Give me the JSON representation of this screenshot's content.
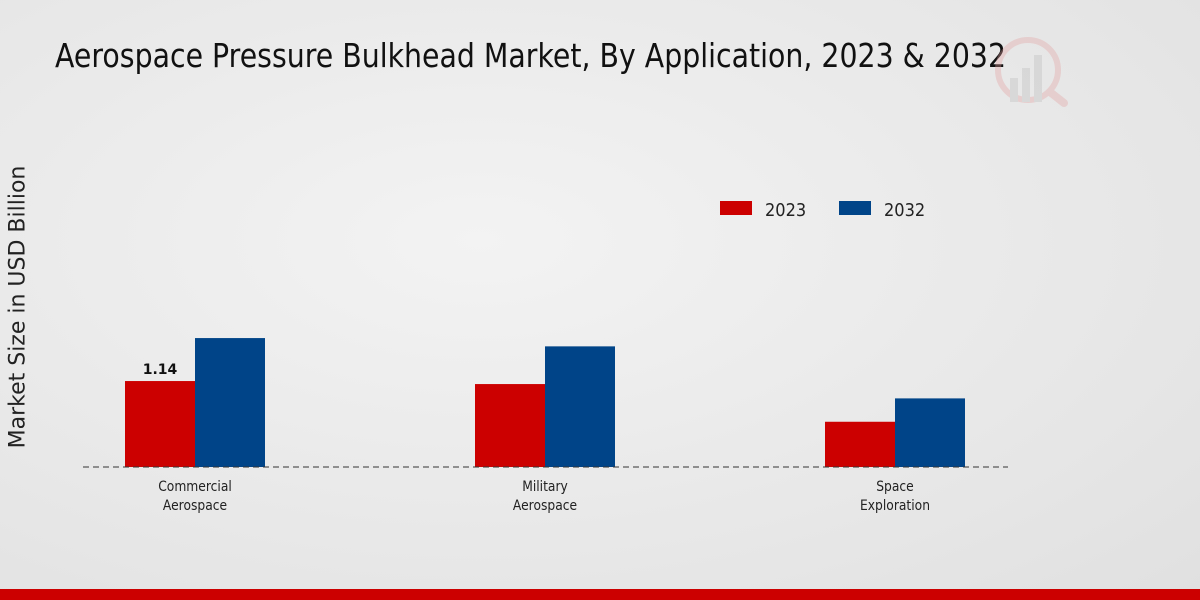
{
  "chart_data": {
    "type": "bar",
    "title": "Aerospace Pressure Bulkhead Market, By Application, 2023 & 2032",
    "xlabel": "",
    "ylabel": "Market Size in USD Billion",
    "categories": [
      "Commercial Aerospace",
      "Military Aerospace",
      "Space Exploration"
    ],
    "category_lines": [
      [
        "Commercial",
        "Aerospace"
      ],
      [
        "Military",
        "Aerospace"
      ],
      [
        "Space",
        "Exploration"
      ]
    ],
    "series": [
      {
        "name": "2023",
        "color": "#cc0000",
        "values": [
          1.14,
          1.1,
          0.6
        ]
      },
      {
        "name": "2032",
        "color": "#004488",
        "values": [
          1.71,
          1.6,
          0.91
        ]
      }
    ],
    "data_labels": [
      {
        "series": 0,
        "index": 0,
        "text": "1.14"
      }
    ],
    "ylim": [
      0,
      4.5
    ],
    "grid": false,
    "legend": "top-right"
  }
}
